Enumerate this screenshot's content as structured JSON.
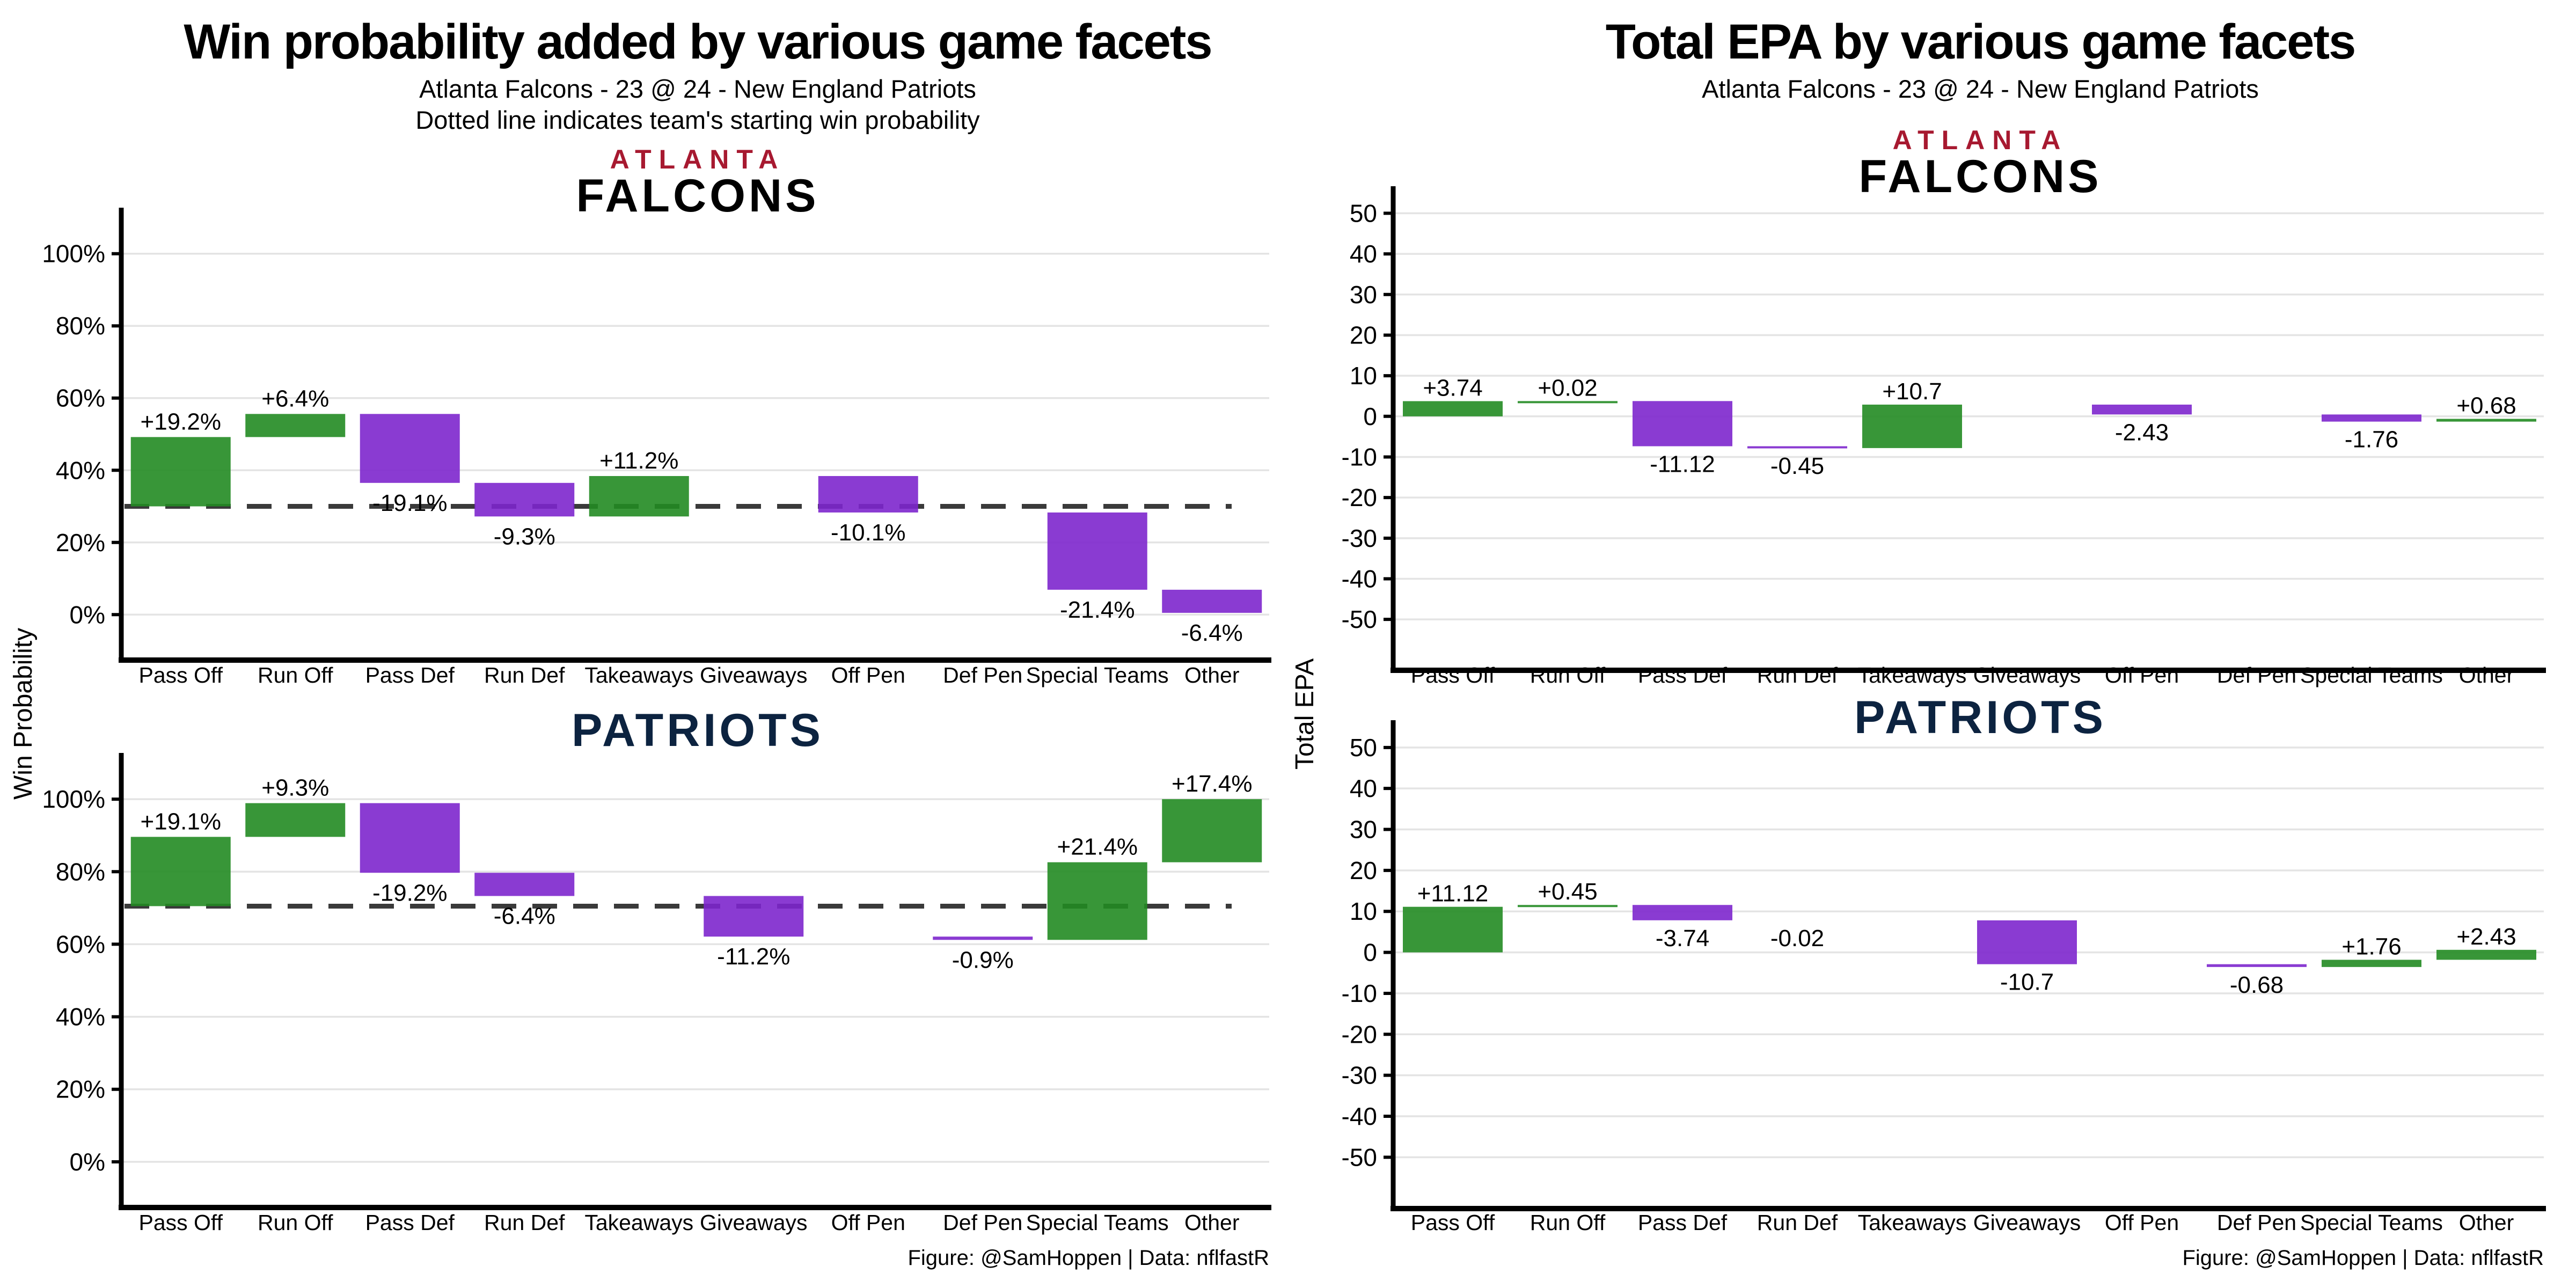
{
  "panels": [
    {
      "title": "Win probability added by various game facets",
      "subtitle": "Atlanta Falcons - 23 @ 24 - New England Patriots",
      "note": "Dotted line indicates team's starting win probability",
      "ylabel": "Win Probability",
      "footer": "Figure: @SamHoppen | Data: nflfastR"
    },
    {
      "title": "Total EPA by various game facets",
      "subtitle": "Atlanta Falcons - 23 @ 24 - New England Patriots",
      "note": "",
      "ylabel": "Total EPA",
      "footer": "Figure: @SamHoppen | Data: nflfastR"
    }
  ],
  "teams": {
    "falcons": {
      "city": "ATLANTA",
      "name": "FALCONS",
      "city_color": "#A71930",
      "name_color": "#000000"
    },
    "patriots": {
      "name": "PATRIOTS",
      "color": "#0C2340"
    }
  },
  "colors": {
    "positive_bar": "#228B22",
    "negative_bar": "#7D26CD",
    "bar_opacity": 0.9,
    "dashed_line": "#3a3a3a",
    "gridline": "#E4E4E4",
    "axis": "#000000",
    "text": "#000000"
  },
  "chart_data": [
    {
      "type": "bar",
      "subtype": "waterfall",
      "team": "Atlanta Falcons",
      "metric": "Win Probability Added",
      "categories": [
        "Pass Off",
        "Run Off",
        "Pass Def",
        "Run Def",
        "Takeaways",
        "Giveaways",
        "Off Pen",
        "Def Pen",
        "Special Teams",
        "Other"
      ],
      "start": 30,
      "values": [
        19.2,
        6.4,
        -19.1,
        -9.3,
        11.2,
        null,
        -10.1,
        null,
        -21.4,
        -6.4
      ],
      "value_labels": [
        "+19.2%",
        "+6.4%",
        "-19.1%",
        "-9.3%",
        "+11.2%",
        null,
        "-10.1%",
        null,
        "-21.4%",
        "-6.4%"
      ],
      "dashed_baseline": 30,
      "ylim": [
        -12,
        112
      ],
      "yticks": [
        {
          "v": 0,
          "label": "0%"
        },
        {
          "v": 20,
          "label": "20%"
        },
        {
          "v": 40,
          "label": "40%"
        },
        {
          "v": 60,
          "label": "60%"
        },
        {
          "v": 80,
          "label": "80%"
        },
        {
          "v": 100,
          "label": "100%"
        }
      ],
      "grid": true,
      "legend": "none"
    },
    {
      "type": "bar",
      "subtype": "waterfall",
      "team": "New England Patriots",
      "metric": "Win Probability Added",
      "categories": [
        "Pass Off",
        "Run Off",
        "Pass Def",
        "Run Def",
        "Takeaways",
        "Giveaways",
        "Off Pen",
        "Def Pen",
        "Special Teams",
        "Other"
      ],
      "start": 70.5,
      "values": [
        19.1,
        9.3,
        -19.2,
        -6.4,
        null,
        -11.2,
        null,
        -0.9,
        21.4,
        17.4
      ],
      "value_labels": [
        "+19.1%",
        "+9.3%",
        "-19.2%",
        "-6.4%",
        null,
        "-11.2%",
        null,
        "-0.9%",
        "+21.4%",
        "+17.4%"
      ],
      "dashed_baseline": 70.5,
      "ylim": [
        -12,
        112
      ],
      "yticks": [
        {
          "v": 0,
          "label": "0%"
        },
        {
          "v": 20,
          "label": "20%"
        },
        {
          "v": 40,
          "label": "40%"
        },
        {
          "v": 60,
          "label": "60%"
        },
        {
          "v": 80,
          "label": "80%"
        },
        {
          "v": 100,
          "label": "100%"
        }
      ],
      "grid": true,
      "legend": "none"
    },
    {
      "type": "bar",
      "subtype": "waterfall",
      "team": "Atlanta Falcons",
      "metric": "Total EPA",
      "categories": [
        "Pass Off",
        "Run Off",
        "Pass Def",
        "Run Def",
        "Takeaways",
        "Giveaways",
        "Off Pen",
        "Def Pen",
        "Special Teams",
        "Other"
      ],
      "start": 0,
      "values": [
        3.74,
        0.02,
        -11.12,
        -0.45,
        10.7,
        null,
        -2.43,
        null,
        -1.76,
        0.68
      ],
      "value_labels": [
        "+3.74",
        "+0.02",
        "-11.12",
        "-0.45",
        "+10.7",
        null,
        "-2.43",
        null,
        "-1.76",
        "+0.68"
      ],
      "dashed_baseline": null,
      "ylim": [
        -62,
        56
      ],
      "yticks": [
        {
          "v": -50,
          "label": "-50"
        },
        {
          "v": -40,
          "label": "-40"
        },
        {
          "v": -30,
          "label": "-30"
        },
        {
          "v": -20,
          "label": "-20"
        },
        {
          "v": -10,
          "label": "-10"
        },
        {
          "v": 0,
          "label": "0"
        },
        {
          "v": 10,
          "label": "10"
        },
        {
          "v": 20,
          "label": "20"
        },
        {
          "v": 30,
          "label": "30"
        },
        {
          "v": 40,
          "label": "40"
        },
        {
          "v": 50,
          "label": "50"
        }
      ],
      "grid": true,
      "legend": "none"
    },
    {
      "type": "bar",
      "subtype": "waterfall",
      "team": "New England Patriots",
      "metric": "Total EPA",
      "categories": [
        "Pass Off",
        "Run Off",
        "Pass Def",
        "Run Def",
        "Takeaways",
        "Giveaways",
        "Off Pen",
        "Def Pen",
        "Special Teams",
        "Other"
      ],
      "start": 0,
      "values": [
        11.12,
        0.45,
        -3.74,
        -0.02,
        null,
        -10.7,
        null,
        -0.68,
        1.76,
        2.43
      ],
      "value_labels": [
        "+11.12",
        "+0.45",
        "-3.74",
        "-0.02",
        null,
        "-10.7",
        null,
        "-0.68",
        "+1.76",
        "+2.43"
      ],
      "dashed_baseline": null,
      "ylim": [
        -62,
        56
      ],
      "yticks": [
        {
          "v": -50,
          "label": "-50"
        },
        {
          "v": -40,
          "label": "-40"
        },
        {
          "v": -30,
          "label": "-30"
        },
        {
          "v": -20,
          "label": "-20"
        },
        {
          "v": -10,
          "label": "-10"
        },
        {
          "v": 0,
          "label": "0"
        },
        {
          "v": 10,
          "label": "10"
        },
        {
          "v": 20,
          "label": "20"
        },
        {
          "v": 30,
          "label": "30"
        },
        {
          "v": 40,
          "label": "40"
        },
        {
          "v": 50,
          "label": "50"
        }
      ],
      "grid": true,
      "legend": "none"
    }
  ]
}
